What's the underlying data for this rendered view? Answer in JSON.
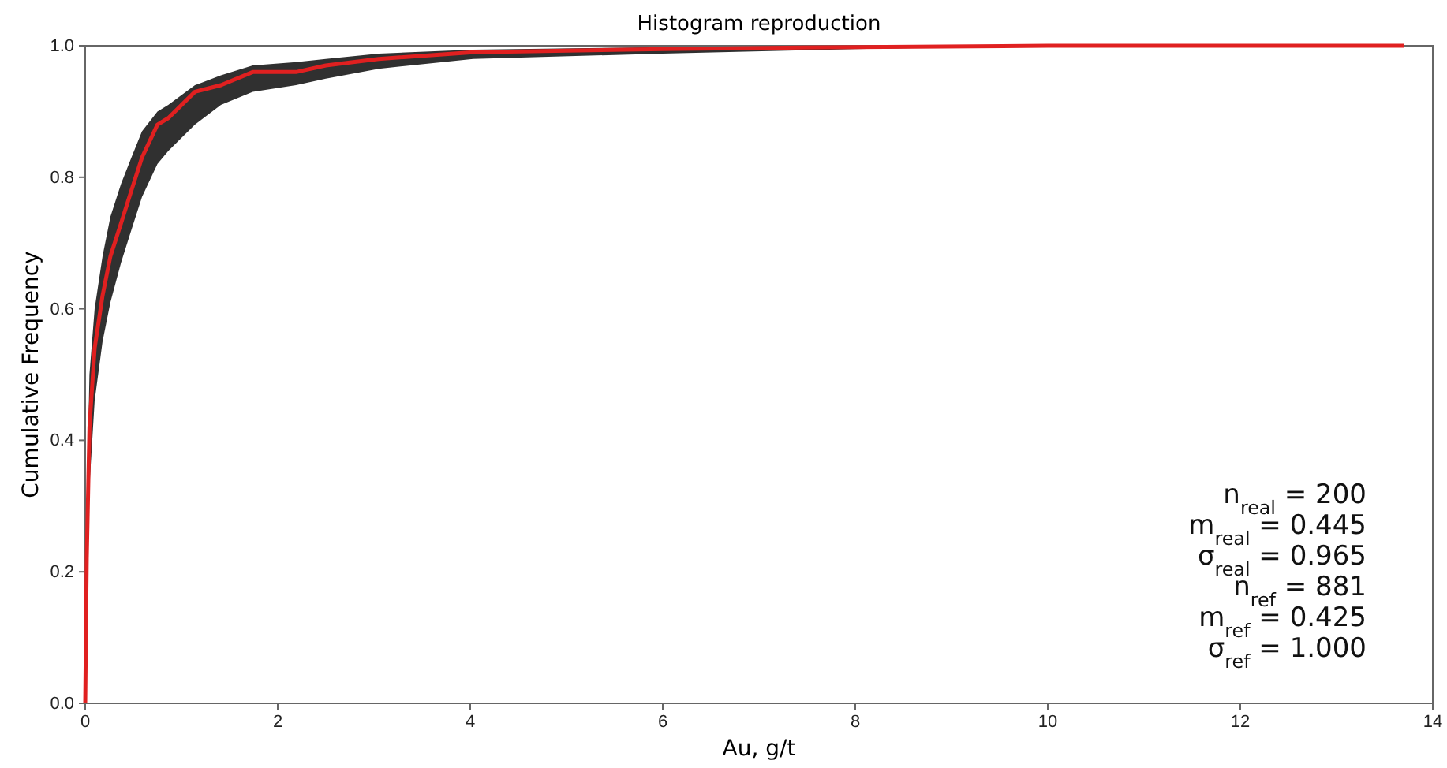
{
  "chart_data": {
    "type": "line",
    "title": "Histogram reproduction",
    "xlabel": "Au, g/t",
    "ylabel": "Cumulative Frequency",
    "x": [
      0,
      0.016,
      0.044,
      0.098,
      0.18,
      0.262,
      0.372,
      0.48,
      0.59,
      0.75,
      0.863,
      1.14,
      1.41,
      1.74,
      2.19,
      2.5,
      3.05,
      4.03,
      6,
      8,
      10,
      13.7
    ],
    "series": [
      {
        "color": "#e02020",
        "values": [
          0,
          0.22,
          0.42,
          0.54,
          0.62,
          0.68,
          0.73,
          0.78,
          0.83,
          0.88,
          0.89,
          0.93,
          0.94,
          0.96,
          0.96,
          0.97,
          0.98,
          0.99,
          0.995,
          0.998,
          1,
          1
        ],
        "lower": [
          0,
          0.15,
          0.33,
          0.46,
          0.55,
          0.61,
          0.67,
          0.72,
          0.77,
          0.82,
          0.84,
          0.88,
          0.91,
          0.93,
          0.94,
          0.95,
          0.965,
          0.98,
          0.988,
          0.995,
          1,
          1
        ],
        "upper": [
          0,
          0.3,
          0.5,
          0.6,
          0.68,
          0.74,
          0.79,
          0.83,
          0.87,
          0.9,
          0.91,
          0.94,
          0.955,
          0.97,
          0.975,
          0.98,
          0.988,
          0.994,
          0.998,
          1,
          1,
          1
        ]
      }
    ],
    "xlim": [
      0,
      14
    ],
    "xticks": [
      0,
      2,
      4,
      6,
      8,
      10,
      12,
      14
    ],
    "ylim": [
      0,
      1
    ],
    "yticks": [
      {
        "value": 0,
        "label": "0.0"
      },
      {
        "value": 0.2,
        "label": "0.2"
      },
      {
        "value": 0.4,
        "label": "0.4"
      },
      {
        "value": 0.6,
        "label": "0.6"
      },
      {
        "value": 0.8,
        "label": "0.8"
      },
      {
        "value": 1,
        "label": "1.0"
      }
    ],
    "marker": "none",
    "line_style": "solid",
    "annotations": [
      "n$_{real}$ = 200",
      "m$_{real}$ = 0.445",
      "σ$_{real}$ = 0.965",
      "n$_{ref}$ = 881",
      "m$_{ref}$ = 0.425",
      "σ$_{ref}$ = 1.000"
    ]
  }
}
